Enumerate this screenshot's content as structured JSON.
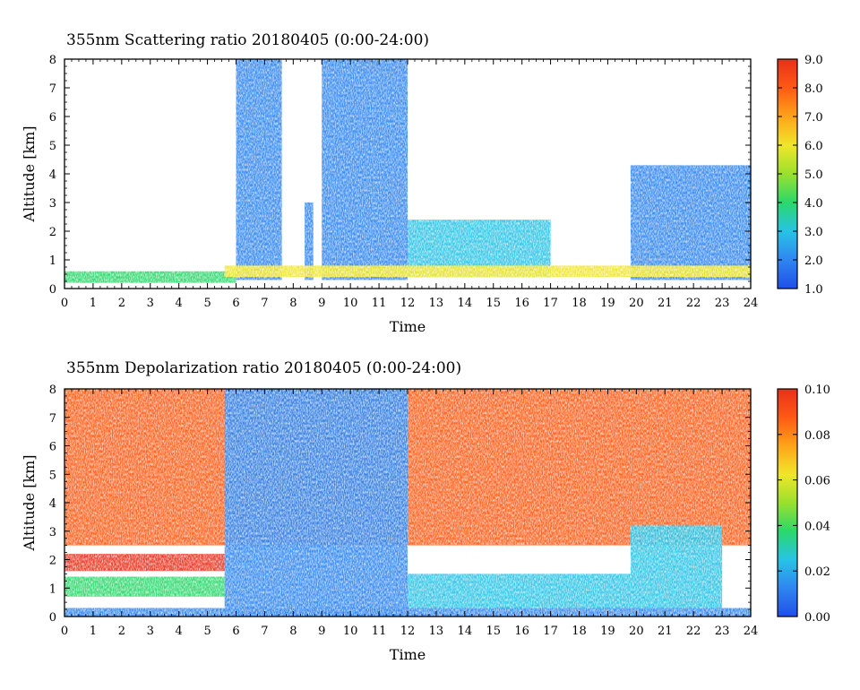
{
  "chart_data": [
    {
      "type": "heatmap",
      "title": "355nm Scattering ratio  20180405 (0:00-24:00)",
      "xlabel": "Time",
      "ylabel": "Altitude [km]",
      "xlim": [
        0,
        24
      ],
      "ylim": [
        0,
        8
      ],
      "xticks": [
        "0",
        "1",
        "2",
        "3",
        "4",
        "5",
        "6",
        "7",
        "8",
        "9",
        "10",
        "11",
        "12",
        "13",
        "14",
        "15",
        "16",
        "17",
        "18",
        "19",
        "20",
        "21",
        "22",
        "23",
        "24"
      ],
      "yticks": [
        "0",
        "1",
        "2",
        "3",
        "4",
        "5",
        "6",
        "7",
        "8"
      ],
      "colorbar": {
        "range": [
          1.0,
          9.0
        ],
        "ticks": [
          "9.0",
          "8.0",
          "7.0",
          "6.0",
          "5.0",
          "4.0",
          "3.0",
          "2.0",
          "1.0"
        ],
        "colors": [
          "#1f4fe8",
          "#2f86f0",
          "#28c3e6",
          "#2ad86a",
          "#9be02e",
          "#f0e62a",
          "#ffa31a",
          "#ff5a14",
          "#e8301a"
        ]
      },
      "features": [
        {
          "x": [
            6.0,
            7.6
          ],
          "y": [
            0.3,
            8.0
          ],
          "value": 2.0
        },
        {
          "x": [
            8.4,
            8.7
          ],
          "y": [
            0.3,
            3.0
          ],
          "value": 2.0
        },
        {
          "x": [
            9.0,
            10.8
          ],
          "y": [
            0.3,
            8.0
          ],
          "value": 2.0
        },
        {
          "x": [
            10.8,
            12.0
          ],
          "y": [
            0.3,
            8.0
          ],
          "value": 2.0
        },
        {
          "x": [
            12.0,
            17.0
          ],
          "y": [
            0.4,
            2.4
          ],
          "value": 2.8
        },
        {
          "x": [
            19.8,
            24.0
          ],
          "y": [
            0.3,
            4.3
          ],
          "value": 2.2
        },
        {
          "x": [
            0,
            6.0
          ],
          "y": [
            0.2,
            0.6
          ],
          "value": 3.5
        },
        {
          "x": [
            5.6,
            24.0
          ],
          "y": [
            0.4,
            0.8
          ],
          "value": 6.0
        }
      ]
    },
    {
      "type": "heatmap",
      "title": "355nm Depolarization ratio  20180405 (0:00-24:00)",
      "xlabel": "Time",
      "ylabel": "Altitude [km]",
      "xlim": [
        0,
        24
      ],
      "ylim": [
        0,
        8
      ],
      "xticks": [
        "0",
        "1",
        "2",
        "3",
        "4",
        "5",
        "6",
        "7",
        "8",
        "9",
        "10",
        "11",
        "12",
        "13",
        "14",
        "15",
        "16",
        "17",
        "18",
        "19",
        "20",
        "21",
        "22",
        "23",
        "24"
      ],
      "yticks": [
        "0",
        "1",
        "2",
        "3",
        "4",
        "5",
        "6",
        "7",
        "8"
      ],
      "colorbar": {
        "range": [
          0.0,
          0.1
        ],
        "ticks": [
          "0.10",
          "0.08",
          "0.06",
          "0.04",
          "0.02",
          "0.00"
        ],
        "colors": [
          "#1f4fe8",
          "#2f86f0",
          "#28c3e6",
          "#2ad86a",
          "#9be02e",
          "#f0e62a",
          "#ffa31a",
          "#ff5a14",
          "#e8301a"
        ]
      },
      "features": [
        {
          "x": [
            0,
            24.0
          ],
          "y": [
            2.5,
            8.0
          ],
          "value": 0.09
        },
        {
          "x": [
            0,
            5.6
          ],
          "y": [
            1.6,
            2.2
          ],
          "value": 0.1
        },
        {
          "x": [
            0,
            5.6
          ],
          "y": [
            0.7,
            1.4
          ],
          "value": 0.04
        },
        {
          "x": [
            5.6,
            12.0
          ],
          "y": [
            0,
            8.0
          ],
          "value": 0.018
        },
        {
          "x": [
            19.8,
            23.0
          ],
          "y": [
            0.3,
            3.2
          ],
          "value": 0.02
        },
        {
          "x": [
            12.0,
            19.8
          ],
          "y": [
            0.3,
            1.5
          ],
          "value": 0.025
        },
        {
          "x": [
            0,
            24.0
          ],
          "y": [
            0,
            0.3
          ],
          "value": 0.015
        }
      ]
    }
  ]
}
